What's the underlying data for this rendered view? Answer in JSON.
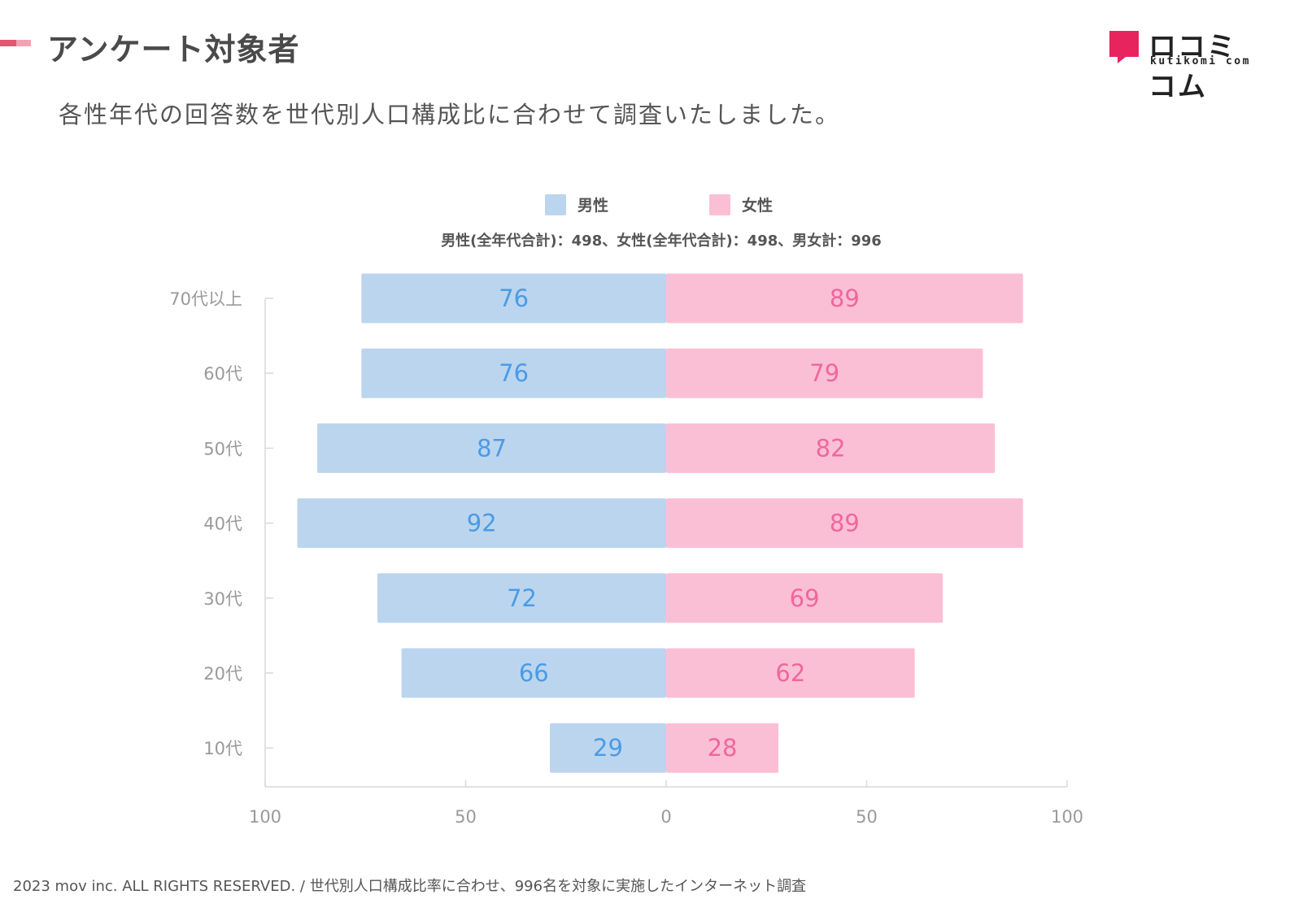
{
  "header": {
    "title": "アンケート対象者",
    "subtitle": "各性年代の回答数を世代別人口構成比に合わせて調査いたしました。"
  },
  "logo": {
    "name": "ロコミコム",
    "sub": "kutikomi com",
    "color": "#e8245f"
  },
  "legend": {
    "male_label": "男性",
    "female_label": "女性",
    "male_color": "#bcd5ee",
    "female_color": "#fbbfd5"
  },
  "totals_text": "男性(全年代合計)：498、女性(全年代合計)：498、男女計：996",
  "chart_data": {
    "type": "bar",
    "orientation": "horizontal-diverging",
    "categories": [
      "70代以上",
      "60代",
      "50代",
      "40代",
      "30代",
      "20代",
      "10代"
    ],
    "series": [
      {
        "name": "男性",
        "values": [
          76,
          76,
          87,
          92,
          72,
          66,
          29
        ],
        "color": "#bcd5ee",
        "label_color": "#4a9be6"
      },
      {
        "name": "女性",
        "values": [
          89,
          79,
          82,
          89,
          69,
          62,
          28
        ],
        "color": "#fbbfd5",
        "label_color": "#f0679a"
      }
    ],
    "xlim": [
      -100,
      100
    ],
    "x_ticks": [
      {
        "value": -100,
        "label": "100"
      },
      {
        "value": -50,
        "label": "50"
      },
      {
        "value": 0,
        "label": "0"
      },
      {
        "value": 50,
        "label": "50"
      },
      {
        "value": 100,
        "label": "100"
      }
    ],
    "grid": false
  },
  "footer": {
    "text": "2023 mov inc. ALL RIGHTS RESERVED. / 世代別人口構成比率に合わせ、996名を対象に実施したインターネット調査"
  }
}
